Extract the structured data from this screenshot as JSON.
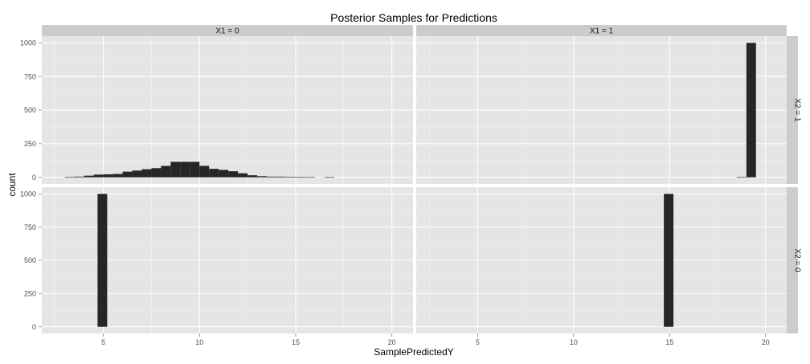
{
  "chart_data": {
    "type": "bar",
    "title": "Posterior Samples for Predictions",
    "xlabel": "SamplePredictedY",
    "ylabel": "count",
    "xlim": [
      1.8,
      21.1
    ],
    "ylim": [
      -50,
      1050
    ],
    "x_ticks": [
      5,
      10,
      15,
      20
    ],
    "y_ticks": [
      0,
      250,
      500,
      750,
      1000
    ],
    "bin_width": 0.5,
    "grid": true,
    "facet_cols": [
      "X1 = 0",
      "X1 = 1"
    ],
    "facet_rows": [
      "X2 = 1",
      "X2 = 0"
    ],
    "panels": [
      {
        "col": "X1 = 0",
        "row": "X2 = 1",
        "bins": [
          {
            "x": 3.25,
            "count": 3
          },
          {
            "x": 3.75,
            "count": 5
          },
          {
            "x": 4.25,
            "count": 12
          },
          {
            "x": 4.75,
            "count": 20
          },
          {
            "x": 5.25,
            "count": 22
          },
          {
            "x": 5.75,
            "count": 25
          },
          {
            "x": 6.25,
            "count": 42
          },
          {
            "x": 6.75,
            "count": 50
          },
          {
            "x": 7.25,
            "count": 60
          },
          {
            "x": 7.75,
            "count": 68
          },
          {
            "x": 8.25,
            "count": 85
          },
          {
            "x": 8.75,
            "count": 115
          },
          {
            "x": 9.25,
            "count": 115
          },
          {
            "x": 9.75,
            "count": 115
          },
          {
            "x": 10.25,
            "count": 85
          },
          {
            "x": 10.75,
            "count": 63
          },
          {
            "x": 11.25,
            "count": 55
          },
          {
            "x": 11.75,
            "count": 45
          },
          {
            "x": 12.25,
            "count": 30
          },
          {
            "x": 12.75,
            "count": 15
          },
          {
            "x": 13.25,
            "count": 8
          },
          {
            "x": 13.75,
            "count": 5
          },
          {
            "x": 14.25,
            "count": 5
          },
          {
            "x": 14.75,
            "count": 4
          },
          {
            "x": 15.25,
            "count": 2
          },
          {
            "x": 15.75,
            "count": 1
          },
          {
            "x": 16.75,
            "count": 1
          }
        ]
      },
      {
        "col": "X1 = 1",
        "row": "X2 = 1",
        "bins": [
          {
            "x": 18.75,
            "count": 2
          },
          {
            "x": 19.25,
            "count": 1000
          }
        ]
      },
      {
        "col": "X1 = 0",
        "row": "X2 = 0",
        "bins": [
          {
            "x": 4.95,
            "count": 1000
          }
        ]
      },
      {
        "col": "X1 = 1",
        "row": "X2 = 0",
        "bins": [
          {
            "x": 14.95,
            "count": 1000
          }
        ]
      }
    ]
  }
}
